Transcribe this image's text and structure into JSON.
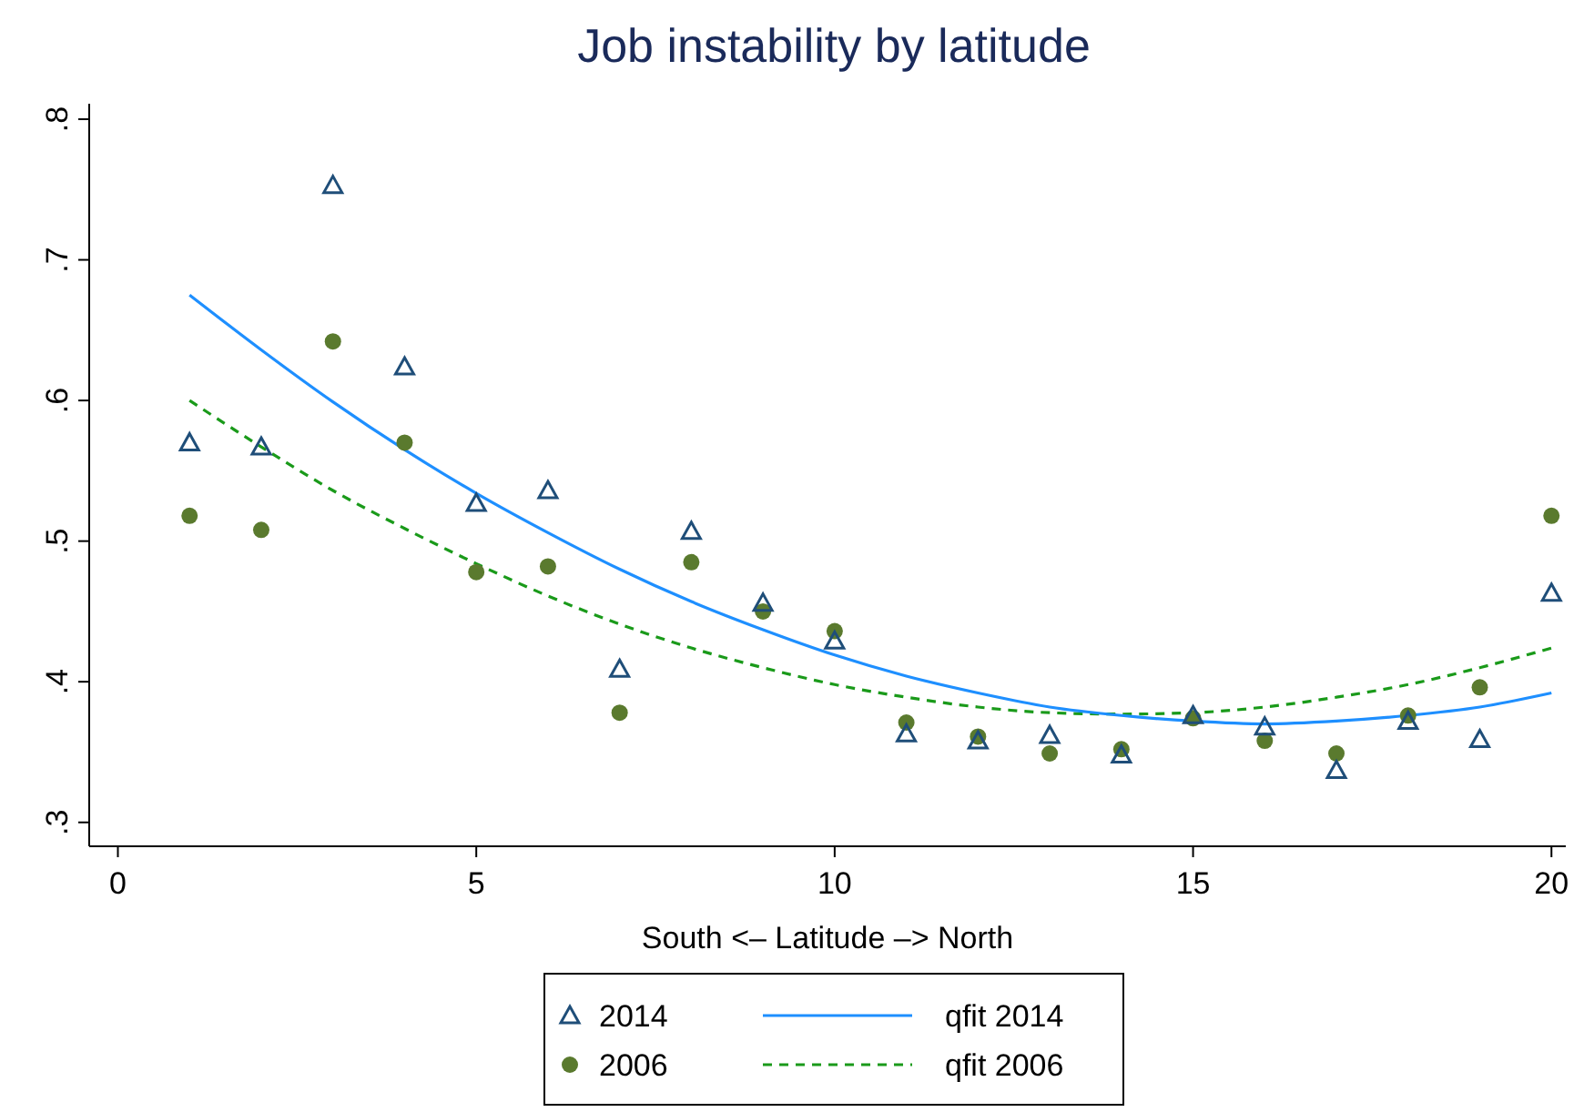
{
  "chart_data": {
    "type": "scatter",
    "title": "Job instability by latitude",
    "xlabel": "South <– Latitude –> North",
    "x": [
      1,
      2,
      3,
      4,
      5,
      6,
      7,
      8,
      9,
      10,
      11,
      12,
      13,
      14,
      15,
      16,
      17,
      18,
      19,
      20
    ],
    "xlim": [
      -0.4,
      20.2
    ],
    "xticks": [
      0,
      5,
      10,
      15,
      20
    ],
    "ylim": [
      0.283,
      0.811
    ],
    "yticks": [
      {
        "value": 0.3,
        "label": ".3"
      },
      {
        "value": 0.4,
        "label": ".4"
      },
      {
        "value": 0.5,
        "label": ".5"
      },
      {
        "value": 0.6,
        "label": ".6"
      },
      {
        "value": 0.7,
        "label": ".7"
      },
      {
        "value": 0.8,
        "label": ".8"
      }
    ],
    "grid": false,
    "legend": "bottom",
    "series": [
      {
        "name": "2014",
        "type": "scatter",
        "marker": "triangle",
        "color": "#1f4e79",
        "values": [
          0.57,
          0.567,
          0.753,
          0.624,
          0.527,
          0.536,
          0.409,
          0.507,
          0.456,
          0.429,
          0.363,
          0.358,
          0.362,
          0.348,
          0.376,
          0.368,
          0.337,
          0.372,
          0.359,
          0.463
        ]
      },
      {
        "name": "2006",
        "type": "scatter",
        "marker": "circle",
        "color": "#5a7a2e",
        "values": [
          0.518,
          0.508,
          0.642,
          0.57,
          0.478,
          0.482,
          0.378,
          0.485,
          0.45,
          0.436,
          0.371,
          0.361,
          0.349,
          0.352,
          0.374,
          0.358,
          0.349,
          0.376,
          0.396,
          0.518
        ]
      },
      {
        "name": "qfit 2014",
        "type": "line",
        "marker": "none",
        "line_style": "solid",
        "color": "#1e8fff",
        "values": [
          0.675,
          0.636,
          0.599,
          0.565,
          0.534,
          0.506,
          0.48,
          0.457,
          0.437,
          0.419,
          0.404,
          0.392,
          0.382,
          0.376,
          0.372,
          0.37,
          0.372,
          0.376,
          0.382,
          0.392
        ]
      },
      {
        "name": "qfit 2006",
        "type": "line",
        "marker": "none",
        "line_style": "dashed",
        "color": "#1a9a1a",
        "values": [
          0.6,
          0.567,
          0.536,
          0.509,
          0.484,
          0.461,
          0.441,
          0.424,
          0.41,
          0.398,
          0.389,
          0.382,
          0.378,
          0.377,
          0.378,
          0.382,
          0.389,
          0.398,
          0.41,
          0.424
        ]
      }
    ]
  }
}
